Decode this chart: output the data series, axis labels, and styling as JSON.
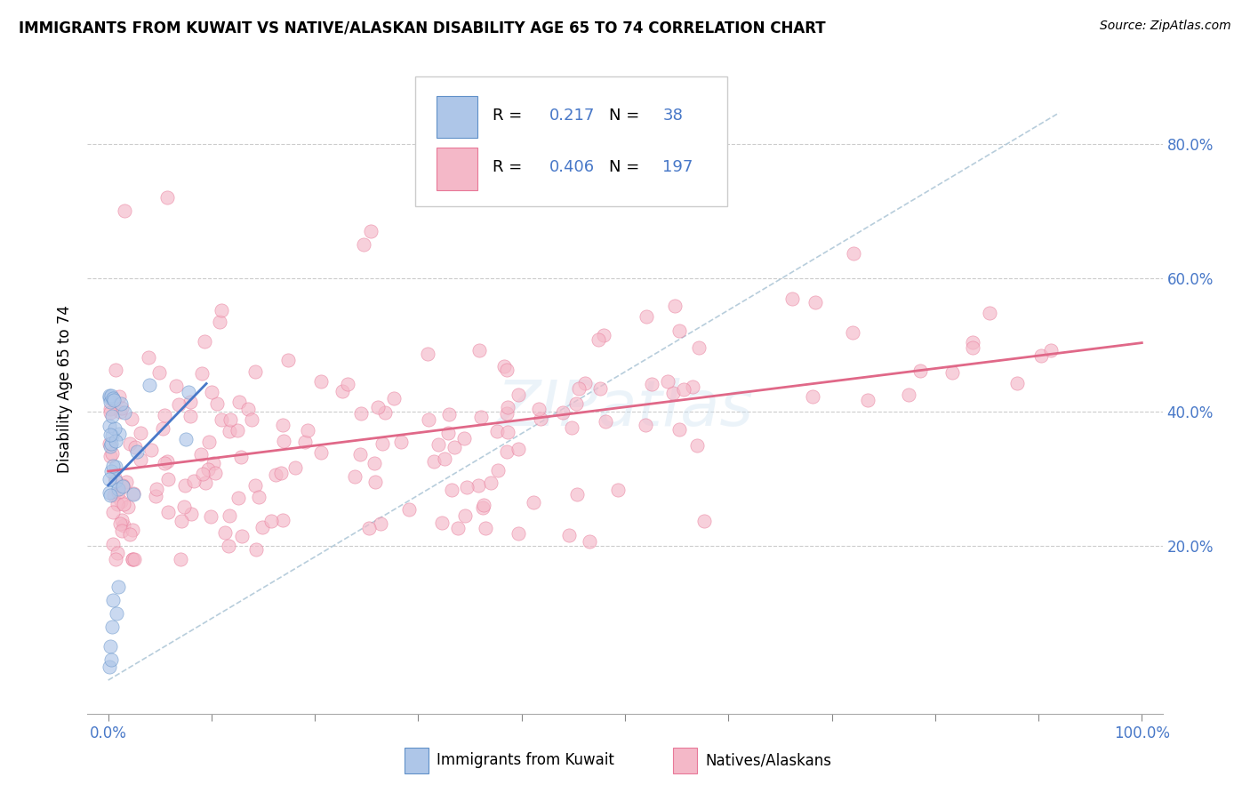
{
  "title": "IMMIGRANTS FROM KUWAIT VS NATIVE/ALASKAN DISABILITY AGE 65 TO 74 CORRELATION CHART",
  "source": "Source: ZipAtlas.com",
  "ylabel": "Disability Age 65 to 74",
  "blue_R": 0.217,
  "blue_N": 38,
  "pink_R": 0.406,
  "pink_N": 197,
  "blue_color": "#aec6e8",
  "pink_color": "#f4b8c8",
  "blue_edge_color": "#6090c8",
  "pink_edge_color": "#e87898",
  "blue_line_color": "#4878c8",
  "pink_line_color": "#e06888",
  "dash_line_color": "#b0c8d8",
  "label_color": "#4878c8",
  "legend_label_blue": "Immigrants from Kuwait",
  "legend_label_pink": "Natives/Alaskans",
  "xlim": [
    -0.02,
    1.02
  ],
  "ylim": [
    -0.05,
    0.92
  ],
  "ytick_vals": [
    0.2,
    0.4,
    0.6,
    0.8
  ],
  "xtick_vals": [
    0.0,
    0.1,
    0.2,
    0.3,
    0.4,
    0.5,
    0.6,
    0.7,
    0.8,
    0.9,
    1.0
  ],
  "marker_size": 120,
  "marker_alpha": 0.65,
  "blue_seed": 42,
  "pink_seed": 99
}
